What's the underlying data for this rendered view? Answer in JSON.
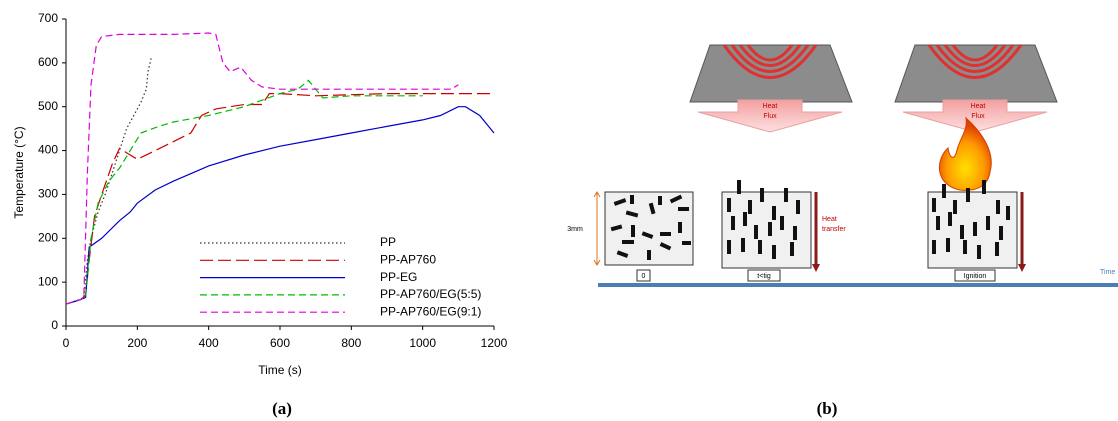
{
  "chart_data": {
    "type": "line",
    "x_label": "Time (s)",
    "y_label": "Temperature (°C)",
    "xlim": [
      0,
      1200
    ],
    "xticks": [
      0,
      200,
      400,
      600,
      800,
      1000,
      1200
    ],
    "ylim": [
      0,
      700
    ],
    "yticks": [
      0,
      100,
      200,
      300,
      400,
      500,
      600,
      700
    ],
    "grid": false,
    "legend": "lower-right",
    "series": [
      {
        "name": "PP",
        "color": "#333333",
        "style": "dotted",
        "x": [
          0,
          30,
          50,
          60,
          70,
          90,
          110,
          130,
          150,
          170,
          190,
          210,
          225,
          230,
          240
        ],
        "values": [
          50,
          58,
          65,
          150,
          200,
          260,
          300,
          350,
          400,
          450,
          480,
          510,
          540,
          580,
          615
        ]
      },
      {
        "name": "PP-AP760",
        "color": "#cc0000",
        "style": "long-dashed",
        "x": [
          0,
          40,
          55,
          65,
          80,
          100,
          130,
          150,
          170,
          200,
          250,
          300,
          350,
          380,
          420,
          500,
          550,
          570,
          600,
          700,
          900,
          1200
        ],
        "values": [
          50,
          60,
          70,
          150,
          250,
          300,
          370,
          405,
          395,
          380,
          400,
          420,
          440,
          480,
          495,
          505,
          505,
          530,
          530,
          525,
          530,
          530
        ]
      },
      {
        "name": "PP-EG",
        "color": "#0000cc",
        "style": "solid",
        "x": [
          0,
          40,
          55,
          65,
          100,
          150,
          180,
          200,
          250,
          300,
          400,
          500,
          600,
          700,
          800,
          900,
          1000,
          1050,
          1100,
          1120,
          1160,
          1200
        ],
        "values": [
          50,
          60,
          65,
          180,
          200,
          240,
          260,
          280,
          310,
          330,
          365,
          390,
          410,
          425,
          440,
          455,
          470,
          480,
          500,
          500,
          480,
          440
        ]
      },
      {
        "name": "PP-AP760/EG(5:5)",
        "color": "#00bb00",
        "style": "dashed",
        "x": [
          0,
          40,
          55,
          70,
          90,
          120,
          150,
          180,
          210,
          260,
          300,
          400,
          500,
          600,
          650,
          680,
          700,
          720,
          800,
          900,
          1000
        ],
        "values": [
          50,
          60,
          65,
          200,
          280,
          330,
          360,
          400,
          440,
          455,
          465,
          480,
          500,
          530,
          540,
          560,
          540,
          520,
          525,
          525,
          525
        ]
      },
      {
        "name": "PP-AP760/EG(9:1)",
        "color": "#dd00dd",
        "style": "dashed",
        "x": [
          0,
          40,
          50,
          60,
          70,
          85,
          100,
          150,
          200,
          300,
          400,
          420,
          440,
          460,
          490,
          520,
          550,
          600,
          700,
          800,
          900,
          1000,
          1080,
          1100
        ],
        "values": [
          50,
          60,
          65,
          350,
          550,
          640,
          660,
          665,
          665,
          665,
          668,
          665,
          600,
          580,
          590,
          560,
          545,
          540,
          540,
          540,
          540,
          540,
          540,
          550
        ]
      }
    ]
  },
  "panel_labels": [
    "(a)",
    "(b)"
  ],
  "diagram": {
    "heaters": [
      {
        "label_lines": [
          "Heat",
          "Flux"
        ]
      },
      {
        "label_lines": [
          "Heat",
          "Flux"
        ]
      }
    ],
    "thickness": "3mm",
    "heat_transfer_lines": [
      "Heat",
      "transfer"
    ],
    "stages": [
      "0",
      "t<tig",
      "Ignition"
    ],
    "time_label": "Time"
  }
}
